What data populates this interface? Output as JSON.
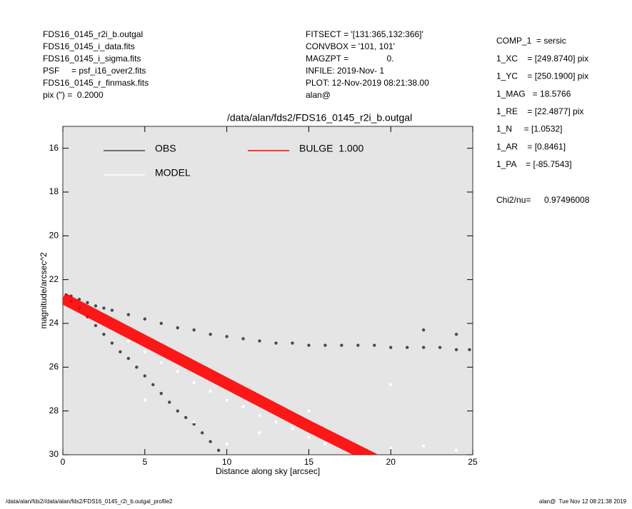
{
  "header": {
    "left": [
      "FDS16_0145_r2i_b.outgal",
      "FDS16_0145_i_data.fits",
      "FDS16_0145_i_sigma.fits",
      "PSF     = psf_i16_over2.fits",
      "FDS16_0145_r_finmask.fits",
      "pix (\") =  0.2000"
    ],
    "middle": [
      "FITSECT = '[131:365,132:366]'",
      "CONVBOX = '101, 101'",
      "MAGZPT =                0.",
      "INFILE: 2019-Nov- 1",
      "PLOT: 12-Nov-2019 08:21:38.00",
      "alan@"
    ],
    "right": [
      "COMP_1  = sersic",
      "1_XC    = [249.8740] pix",
      "1_YC    = [250.1900] pix",
      "1_MAG   = 18.5766",
      "1_RE    = [22.4877] pix",
      "1_N     = [1.0532]",
      "1_AR    = [0.8461]",
      "1_PA    = [-85.7543]"
    ],
    "chi2_label": "Chi2/nu=",
    "chi2_value": "0.97496008"
  },
  "footer": {
    "left": "/data/alan/fds2//data/alan/fds2/FDS16_0145_r2i_b.outgal_profile2",
    "right": "alan@  Tue Nov 12 08:21:38 2019"
  },
  "chart_data": {
    "type": "scatter",
    "title": "/data/alan/fds2/FDS16_0145_r2i_b.outgal",
    "xlabel": "Distance along sky [arcsec]",
    "ylabel": "magnitude/arcsec^2",
    "xlim": [
      0,
      25
    ],
    "ylim": [
      30,
      15
    ],
    "xticks": [
      0,
      5,
      10,
      15,
      20,
      25
    ],
    "yticks": [
      16,
      18,
      20,
      22,
      24,
      26,
      28,
      30
    ],
    "background": "#e5e5e5",
    "series": [
      {
        "name": "OBS",
        "color": "#4a4a4a",
        "style": "points",
        "x": [
          0.2,
          0.5,
          1,
          1.5,
          2,
          2.5,
          3,
          4,
          5,
          6,
          7,
          8,
          9,
          10,
          11,
          12,
          13,
          14,
          15,
          16,
          17,
          18,
          19,
          20,
          21,
          22,
          23,
          24,
          24.8,
          0.5,
          1,
          1.5,
          2,
          2.5,
          3,
          3.5,
          4,
          4.5,
          5,
          5.5,
          6,
          6.5,
          7,
          7.5,
          8,
          8.5,
          9,
          9.5,
          22,
          24
        ],
        "values": [
          22.7,
          22.75,
          22.9,
          23.05,
          23.2,
          23.3,
          23.4,
          23.6,
          23.8,
          24.0,
          24.2,
          24.3,
          24.5,
          24.6,
          24.7,
          24.8,
          24.9,
          24.9,
          25.0,
          25.0,
          25.0,
          25.0,
          25.0,
          25.1,
          25.1,
          25.1,
          25.1,
          25.2,
          25.2,
          23.0,
          23.3,
          23.7,
          24.1,
          24.5,
          24.9,
          25.3,
          25.6,
          26.0,
          26.4,
          26.8,
          27.2,
          27.6,
          28.0,
          28.3,
          28.6,
          29.0,
          29.4,
          29.8,
          24.3,
          24.5
        ]
      },
      {
        "name": "MODEL",
        "color": "#ffffff",
        "style": "points",
        "x": [
          1,
          2,
          3,
          4,
          5,
          6,
          7,
          8,
          9,
          10,
          11,
          12,
          13,
          14,
          15,
          16,
          18,
          20,
          22,
          24,
          5,
          8,
          10,
          12,
          15,
          20
        ],
        "values": [
          23.1,
          23.6,
          24.2,
          24.8,
          25.3,
          25.8,
          26.2,
          26.7,
          27.1,
          27.5,
          27.8,
          28.2,
          28.5,
          28.8,
          29.2,
          29.5,
          29.9,
          29.7,
          29.6,
          29.8,
          27.5,
          28.5,
          29.5,
          29.0,
          28.0,
          26.8
        ]
      },
      {
        "name": "BULGE  1.000",
        "color": "#ff0000",
        "style": "band",
        "x": [
          0,
          5,
          10,
          15,
          19
        ],
        "values": [
          22.85,
          24.8,
          26.75,
          28.7,
          30.2
        ]
      }
    ]
  }
}
